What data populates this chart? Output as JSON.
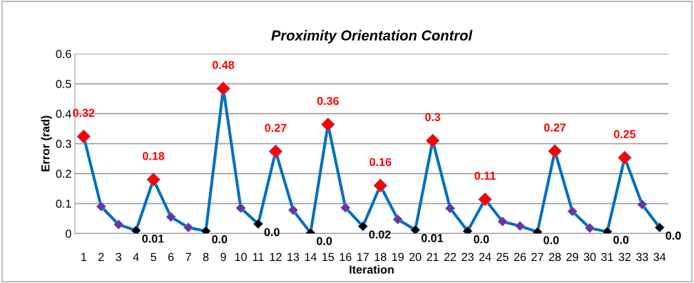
{
  "chart_data": {
    "type": "line",
    "title": "Proximity Orientation Control",
    "xlabel": "Iteration",
    "ylabel": "Error (rad)",
    "categories": [
      "1",
      "2",
      "3",
      "4",
      "5",
      "6",
      "7",
      "8",
      "9",
      "10",
      "11",
      "12",
      "13",
      "14",
      "15",
      "16",
      "17",
      "18",
      "19",
      "20",
      "21",
      "22",
      "23",
      "24",
      "25",
      "26",
      "27",
      "28",
      "29",
      "30",
      "31",
      "32",
      "33",
      "34"
    ],
    "series": [
      {
        "color": "#0070c0",
        "values": [
          0.324,
          0.09,
          0.03,
          0.01,
          0.18,
          0.055,
          0.02,
          0.008,
          0.484,
          0.085,
          0.032,
          0.274,
          0.078,
          0.002,
          0.364,
          0.086,
          0.024,
          0.16,
          0.047,
          0.012,
          0.31,
          0.084,
          0.008,
          0.114,
          0.04,
          0.025,
          0.005,
          0.275,
          0.074,
          0.018,
          0.006,
          0.253,
          0.097,
          0.02
        ],
        "colors": [
          "#ff0000",
          "#7030a0",
          "#7030a0",
          "#000000",
          "#ff0000",
          "#7030a0",
          "#7030a0",
          "#000000",
          "#ff0000",
          "#7030a0",
          "#000000",
          "#ff0000",
          "#7030a0",
          "#000000",
          "#ff0000",
          "#7030a0",
          "#000000",
          "#ff0000",
          "#7030a0",
          "#000000",
          "#ff0000",
          "#7030a0",
          "#000000",
          "#ff0000",
          "#7030a0",
          "#7030a0",
          "#000000",
          "#ff0000",
          "#7030a0",
          "#7030a0",
          "#000000",
          "#ff0000",
          "#7030a0",
          "#000000"
        ],
        "value_labels": [
          "0.32",
          null,
          null,
          "0.01",
          "0.18",
          null,
          null,
          "0.0",
          "0.48",
          null,
          "0.0",
          "0.27",
          null,
          "0.0",
          "0.36",
          null,
          "0.02",
          "0.16",
          null,
          "0.01",
          "0.3",
          null,
          "0.0",
          "0.11",
          null,
          null,
          "0.0",
          "0.27",
          null,
          null,
          "0.0",
          "0.25",
          null,
          "0.0"
        ]
      }
    ],
    "ylim": [
      0,
      0.6
    ],
    "yticks": [
      0,
      0.1,
      0.2,
      0.3,
      0.4,
      0.5,
      0.6
    ],
    "grid": "y",
    "marker": "diamond",
    "line_style": "solid",
    "legend": false
  }
}
